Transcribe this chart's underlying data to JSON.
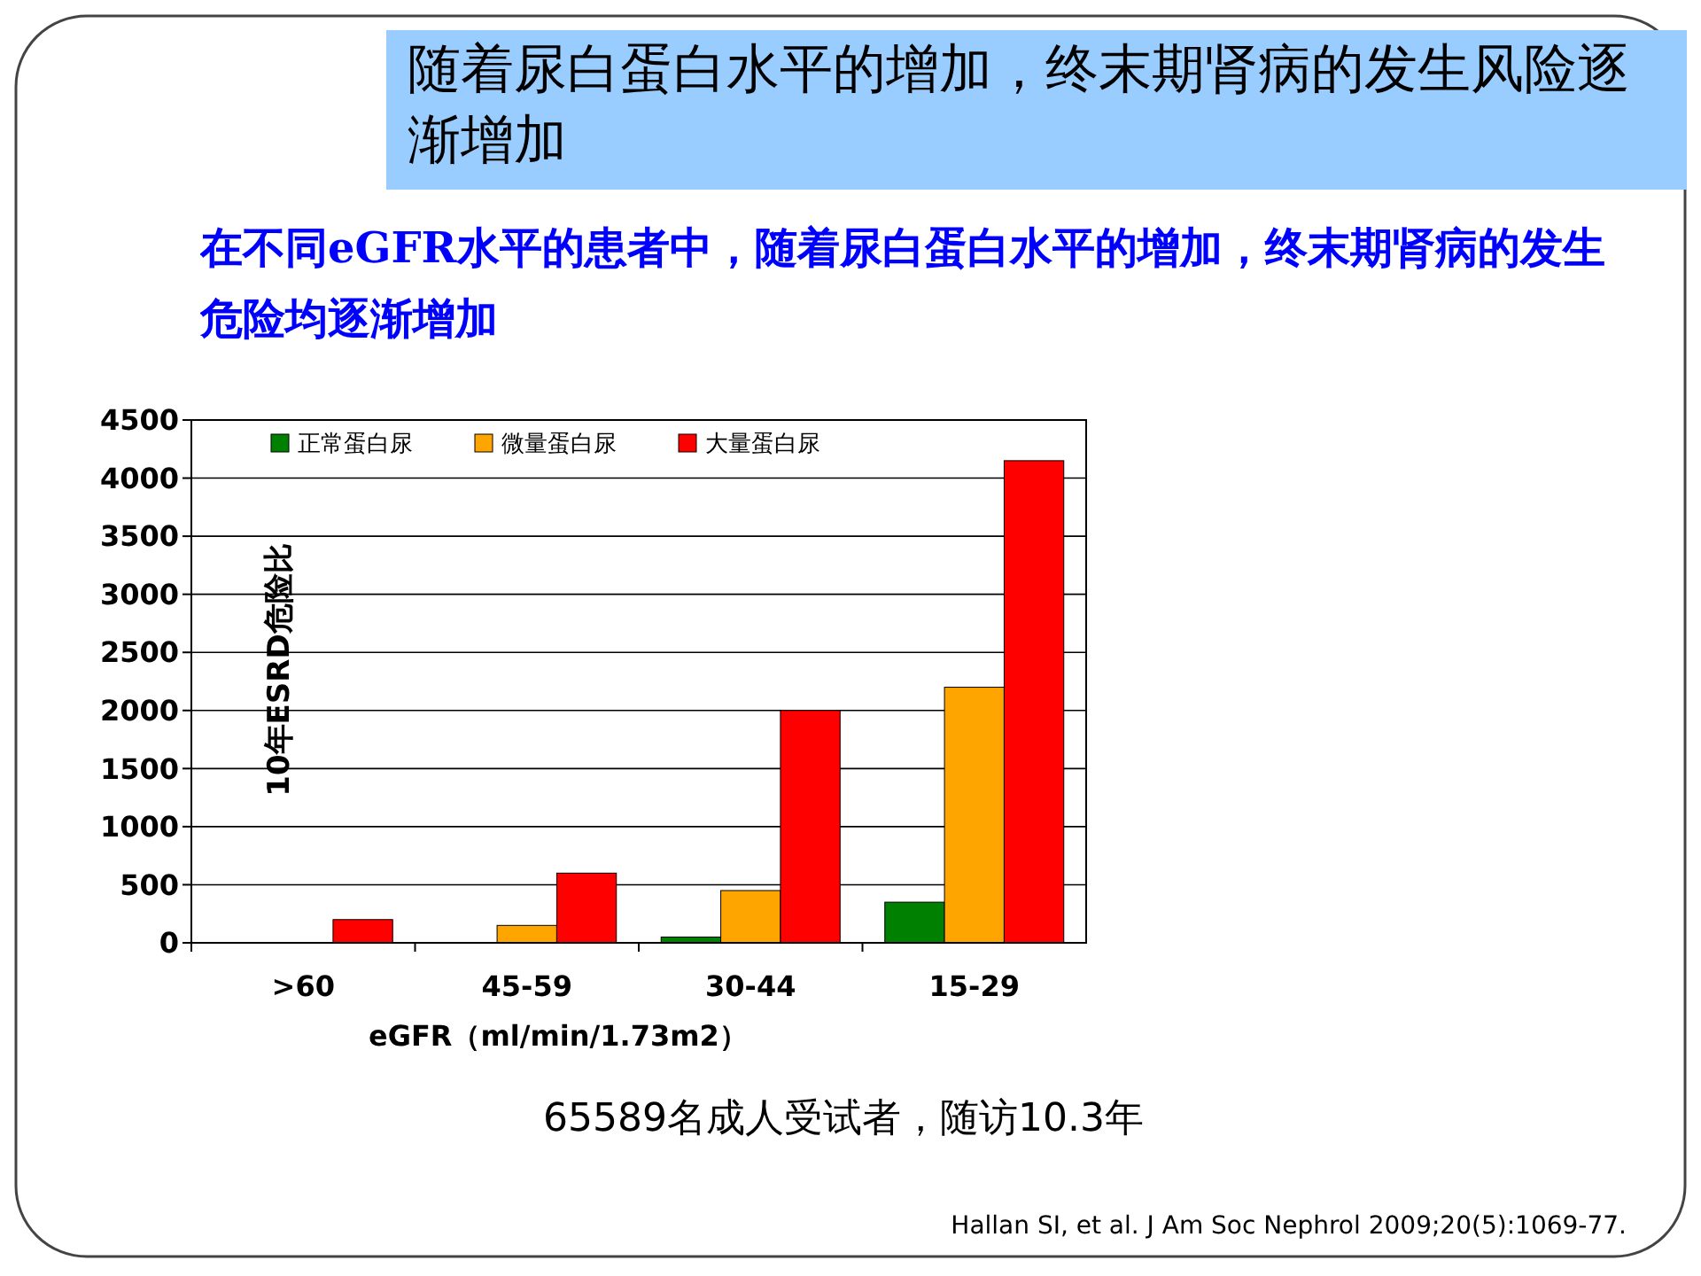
{
  "chart_data": {
    "type": "bar",
    "title": "随着尿白蛋白水平的增加，终末期肾病的发生风险逐渐增加",
    "subtitle": "在不同eGFR水平的患者中，随着尿白蛋白水平的增加，终末期肾病的发生危险均逐渐增加",
    "xlabel": "eGFR（ml/min/1.73m2）",
    "ylabel": "10年ESRD危险比",
    "categories": [
      ">60",
      "45-59",
      "30-44",
      "15-29"
    ],
    "series": [
      {
        "name": "正常蛋白尿",
        "color": "#008000",
        "values": [
          null,
          null,
          50,
          350
        ]
      },
      {
        "name": "微量蛋白尿",
        "color": "#ffa500",
        "values": [
          null,
          150,
          450,
          2200
        ]
      },
      {
        "name": "大量蛋白尿",
        "color": "#ff0000",
        "values": [
          200,
          600,
          2000,
          4150
        ]
      }
    ],
    "ylim": [
      0,
      4500
    ],
    "yticks": [
      0,
      500,
      1000,
      1500,
      2000,
      2500,
      3000,
      3500,
      4000,
      4500
    ],
    "grid": "y",
    "legend": "top left",
    "annotations": [
      "65589名成人受试者，随访10.3年",
      "Hallan SI, et al. J Am Soc Nephrol 2009;20(5):1069-77."
    ]
  }
}
